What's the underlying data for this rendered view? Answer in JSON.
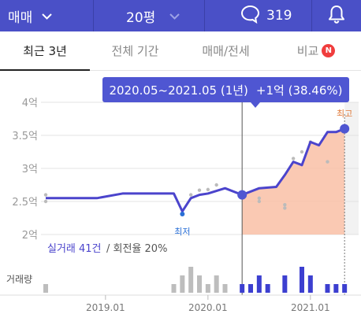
{
  "topbar": {
    "deal_type": "매매",
    "size": "20평",
    "comment_count": "319",
    "comment_icon": "speech-bubble-icon",
    "bell_icon": "bell-icon"
  },
  "tabs": [
    {
      "label": "최근 3년",
      "active": true
    },
    {
      "label": "전체 기간",
      "active": false
    },
    {
      "label": "매매/전세",
      "active": false
    },
    {
      "label": "비교",
      "active": false,
      "badge": "N"
    }
  ],
  "tooltip": {
    "range": "2020.05~2021.05 (1년)",
    "change": "+1억 (38.46%)"
  },
  "colors": {
    "brand": "#4a50c7",
    "line": "#4b44cc",
    "highlight_fill": "#f9bfa6",
    "marker": "#4f56d2",
    "max_label": "#e07a3a",
    "min_label": "#2a6fd6",
    "new_badge": "#f03d3d"
  },
  "chart_data": {
    "type": "line",
    "y_tick_labels": [
      "4억",
      "3.5억",
      "3억",
      "2.5억",
      "2억"
    ],
    "x_tick_labels": [
      "2019.01",
      "2020.01",
      "2021.01"
    ],
    "ylim": [
      2.0,
      4.0
    ],
    "y_unit": "억",
    "series": [
      {
        "x": [
          "2018.06",
          "2018.09",
          "2018.12",
          "2019.03",
          "2019.06",
          "2019.09",
          "2019.10",
          "2019.11",
          "2019.12",
          "2020.01",
          "2020.03",
          "2020.05",
          "2020.07",
          "2020.09",
          "2020.10",
          "2020.11",
          "2020.12",
          "2021.01",
          "2021.02",
          "2021.03",
          "2021.04",
          "2021.05"
        ],
        "values": [
          2.55,
          2.55,
          2.55,
          2.62,
          2.62,
          2.62,
          2.35,
          2.55,
          2.6,
          2.62,
          2.7,
          2.6,
          2.7,
          2.72,
          2.9,
          3.1,
          3.05,
          3.4,
          3.35,
          3.55,
          3.55,
          3.6
        ]
      }
    ],
    "scatter_points": [
      {
        "x": "2018.06",
        "y": 2.6
      },
      {
        "x": "2018.06",
        "y": 2.5
      },
      {
        "x": "2019.11",
        "y": 2.6
      },
      {
        "x": "2019.12",
        "y": 2.67
      },
      {
        "x": "2020.01",
        "y": 2.68
      },
      {
        "x": "2020.02",
        "y": 2.75
      },
      {
        "x": "2020.07",
        "y": 2.55
      },
      {
        "x": "2020.07",
        "y": 2.5
      },
      {
        "x": "2020.10",
        "y": 2.45
      },
      {
        "x": "2020.10",
        "y": 2.4
      },
      {
        "x": "2020.11",
        "y": 3.15
      },
      {
        "x": "2020.12",
        "y": 3.25
      },
      {
        "x": "2021.01",
        "y": 3.4
      },
      {
        "x": "2021.03",
        "y": 3.1
      }
    ],
    "highlight_range": [
      "2020.05",
      "2021.05"
    ],
    "min_point": {
      "x": "2019.10",
      "y": 2.35,
      "label": "최저"
    },
    "max_point": {
      "x": "2021.05",
      "y": 3.6,
      "label": "최고"
    },
    "volume_label": "거래량",
    "volume": [
      {
        "x": "2018.06",
        "value": 1,
        "highlight": false
      },
      {
        "x": "2019.09",
        "value": 1,
        "highlight": false
      },
      {
        "x": "2019.10",
        "value": 2,
        "highlight": false
      },
      {
        "x": "2019.11",
        "value": 3,
        "highlight": false
      },
      {
        "x": "2019.12",
        "value": 2,
        "highlight": false
      },
      {
        "x": "2020.01",
        "value": 1,
        "highlight": false
      },
      {
        "x": "2020.02",
        "value": 2,
        "highlight": false
      },
      {
        "x": "2020.03",
        "value": 1,
        "highlight": false
      },
      {
        "x": "2020.05",
        "value": 1,
        "highlight": true
      },
      {
        "x": "2020.06",
        "value": 1,
        "highlight": true
      },
      {
        "x": "2020.07",
        "value": 2,
        "highlight": true
      },
      {
        "x": "2020.08",
        "value": 1,
        "highlight": true
      },
      {
        "x": "2020.10",
        "value": 2,
        "highlight": true
      },
      {
        "x": "2020.12",
        "value": 3,
        "highlight": true
      },
      {
        "x": "2021.01",
        "value": 2,
        "highlight": true
      },
      {
        "x": "2021.03",
        "value": 1,
        "highlight": true
      },
      {
        "x": "2021.04",
        "value": 1,
        "highlight": true
      },
      {
        "x": "2021.05",
        "value": 1,
        "highlight": true
      }
    ],
    "summary": {
      "trades": "실거래 41건",
      "turnover": "/ 회전율 20%"
    }
  }
}
